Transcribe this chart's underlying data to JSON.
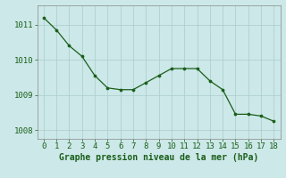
{
  "x": [
    0,
    1,
    2,
    3,
    4,
    5,
    6,
    7,
    8,
    9,
    10,
    11,
    12,
    13,
    14,
    15,
    16,
    17,
    18
  ],
  "y": [
    1011.2,
    1010.85,
    1010.4,
    1010.1,
    1009.55,
    1009.2,
    1009.15,
    1009.15,
    1009.35,
    1009.55,
    1009.75,
    1009.75,
    1009.75,
    1009.4,
    1009.15,
    1008.45,
    1008.45,
    1008.4,
    1008.25
  ],
  "line_color": "#1a5e1a",
  "marker_color": "#1a5e1a",
  "bg_color": "#cce8e8",
  "grid_color": "#aacccc",
  "xlabel": "Graphe pression niveau de la mer (hPa)",
  "xlabel_color": "#1a5e1a",
  "tick_color": "#1a5e1a",
  "spine_color": "#888888",
  "ylim": [
    1007.75,
    1011.55
  ],
  "xlim": [
    -0.5,
    18.5
  ],
  "yticks": [
    1008,
    1009,
    1010,
    1011
  ],
  "xticks": [
    0,
    1,
    2,
    3,
    4,
    5,
    6,
    7,
    8,
    9,
    10,
    11,
    12,
    13,
    14,
    15,
    16,
    17,
    18
  ],
  "font_size": 6.5,
  "xlabel_font_size": 7.0
}
